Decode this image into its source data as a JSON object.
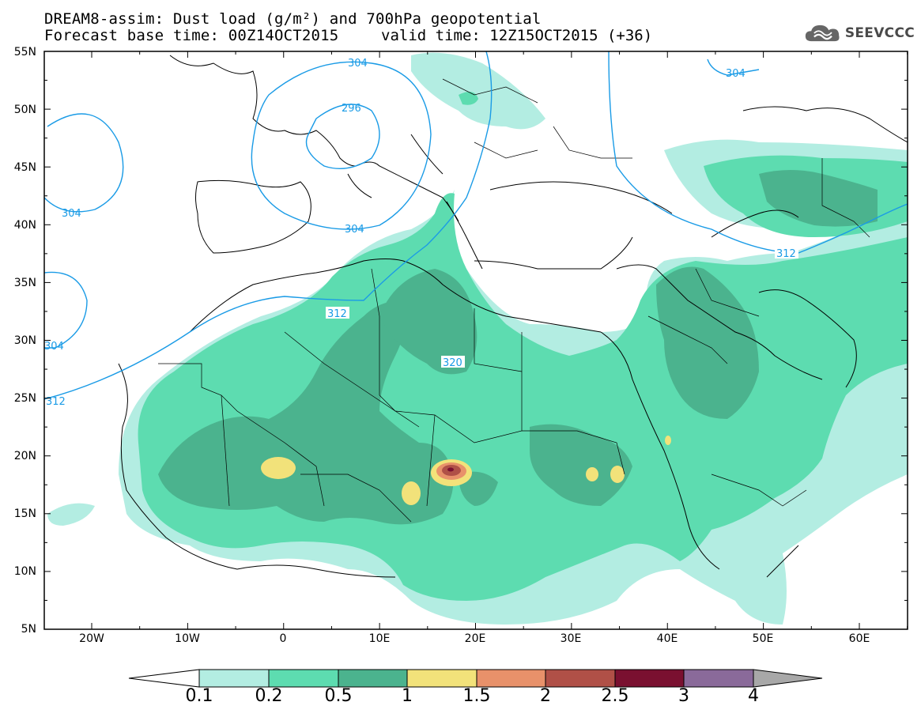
{
  "title_line1": "DREAM8-assim: Dust load (g/m²) and 700hPa geopotential",
  "title_line2_left": "Forecast base time: 00Z14OCT2015",
  "title_line2_right": "valid time: 12Z15OCT2015 (+36)",
  "logo_text": "SEEVCCC",
  "lat_labels": [
    "55N",
    "50N",
    "45N",
    "40N",
    "35N",
    "30N",
    "25N",
    "20N",
    "15N",
    "10N",
    "5N"
  ],
  "lon_labels": [
    "20W",
    "10W",
    "0",
    "10E",
    "20E",
    "30E",
    "40E",
    "50E",
    "60E"
  ],
  "contour_labels": [
    "304",
    "296",
    "304",
    "304",
    "312",
    "320",
    "304",
    "312",
    "312",
    "304"
  ],
  "colorbar": {
    "ticks": [
      "0.1",
      "0.2",
      "0.5",
      "1",
      "1.5",
      "2",
      "2.5",
      "3",
      "4"
    ],
    "colors": [
      "#ffffff",
      "#b3ede2",
      "#5ddcb0",
      "#4bb38e",
      "#f2e27a",
      "#e8916a",
      "#b05047",
      "#7a1030",
      "#8a6a9a",
      "#a8a8a8"
    ]
  },
  "map_colors": {
    "level1": "#b3ede2",
    "level2": "#5ddcb0",
    "level3": "#4bb38e",
    "level4": "#f2e27a",
    "level5": "#e8916a",
    "level6": "#b05047",
    "contour": "#1a9be6"
  }
}
